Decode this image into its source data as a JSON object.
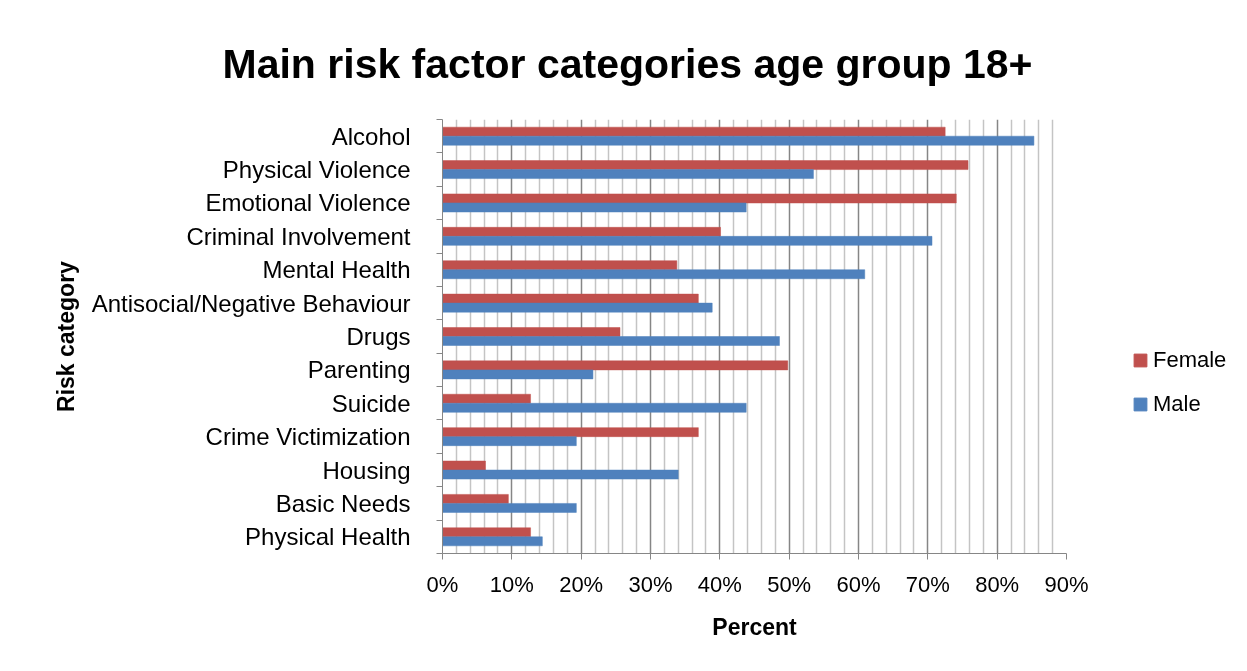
{
  "chart_data": {
    "type": "bar",
    "orientation": "horizontal",
    "title": "Main risk factor categories age group 18+",
    "xlabel": "Percent",
    "ylabel": "Risk category",
    "categories": [
      "Alcohol",
      "Physical Violence",
      "Emotional Violence",
      "Criminal Involvement",
      "Mental Health",
      "Antisocial/Negative Behaviour",
      "Drugs",
      "Parenting",
      "Suicide",
      "Crime Victimization",
      "Housing",
      "Basic Needs",
      "Physical Health"
    ],
    "series": [
      {
        "name": "Female",
        "color": "#c0504d",
        "values": [
          72.5,
          75.8,
          74.1,
          40.1,
          33.8,
          36.9,
          25.6,
          49.8,
          12.7,
          36.9,
          6.2,
          9.5,
          12.7
        ]
      },
      {
        "name": "Male",
        "color": "#4f81bd",
        "values": [
          85.3,
          53.5,
          43.8,
          70.6,
          60.9,
          38.9,
          48.6,
          21.7,
          43.8,
          19.3,
          34.0,
          19.3,
          14.4
        ]
      }
    ],
    "xlim": [
      0,
      90
    ],
    "xticks": [
      {
        "value": 0,
        "label": "0%"
      },
      {
        "value": 2,
        "label": null
      },
      {
        "value": 4,
        "label": null
      },
      {
        "value": 6,
        "label": null
      },
      {
        "value": 8,
        "label": null
      },
      {
        "value": 10,
        "label": "10%"
      },
      {
        "value": 12,
        "label": null
      },
      {
        "value": 14,
        "label": null
      },
      {
        "value": 16,
        "label": null
      },
      {
        "value": 18,
        "label": null
      },
      {
        "value": 20,
        "label": "20%"
      },
      {
        "value": 22,
        "label": null
      },
      {
        "value": 24,
        "label": null
      },
      {
        "value": 26,
        "label": null
      },
      {
        "value": 28,
        "label": null
      },
      {
        "value": 30,
        "label": "30%"
      },
      {
        "value": 32,
        "label": null
      },
      {
        "value": 34,
        "label": null
      },
      {
        "value": 36,
        "label": null
      },
      {
        "value": 38,
        "label": null
      },
      {
        "value": 40,
        "label": "40%"
      },
      {
        "value": 42,
        "label": null
      },
      {
        "value": 44,
        "label": null
      },
      {
        "value": 46,
        "label": null
      },
      {
        "value": 48,
        "label": null
      },
      {
        "value": 50,
        "label": "50%"
      },
      {
        "value": 52,
        "label": null
      },
      {
        "value": 54,
        "label": null
      },
      {
        "value": 56,
        "label": null
      },
      {
        "value": 58,
        "label": null
      },
      {
        "value": 60,
        "label": "60%"
      },
      {
        "value": 62,
        "label": null
      },
      {
        "value": 64,
        "label": null
      },
      {
        "value": 66,
        "label": null
      },
      {
        "value": 68,
        "label": null
      },
      {
        "value": 70,
        "label": "70%"
      },
      {
        "value": 72,
        "label": null
      },
      {
        "value": 74,
        "label": null
      },
      {
        "value": 76,
        "label": null
      },
      {
        "value": 78,
        "label": null
      },
      {
        "value": 80,
        "label": "80%"
      },
      {
        "value": 82,
        "label": null
      },
      {
        "value": 84,
        "label": null
      },
      {
        "value": 86,
        "label": null
      },
      {
        "value": 88,
        "label": null
      },
      {
        "value": 90,
        "label": "90%"
      }
    ],
    "grid": "x",
    "legend": "right"
  }
}
